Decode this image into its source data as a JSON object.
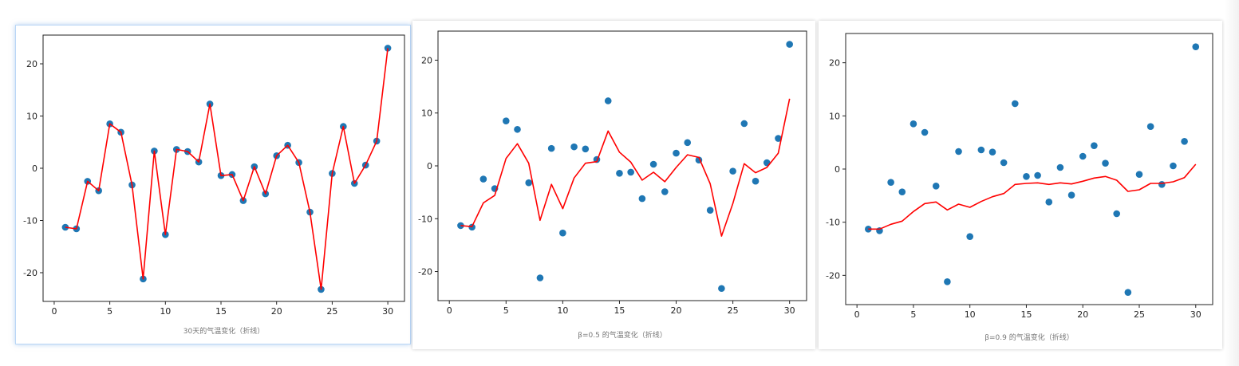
{
  "colors": {
    "points": "#1f77b4",
    "line": "#ff0000",
    "frame": "#222222",
    "caption": "#777777"
  },
  "chart_data": [
    {
      "type": "scatter",
      "caption": "30天的气温变化（折线）",
      "xlim": [
        -1,
        31.5
      ],
      "ylim": [
        -25.5,
        25.5
      ],
      "xticks": [
        0,
        5,
        10,
        15,
        20,
        25,
        30
      ],
      "yticks": [
        -20,
        -10,
        0,
        10,
        20
      ],
      "grid": false,
      "x": [
        1,
        2,
        3,
        4,
        5,
        6,
        7,
        8,
        9,
        10,
        11,
        12,
        13,
        14,
        15,
        16,
        17,
        18,
        19,
        20,
        21,
        22,
        23,
        24,
        25,
        26,
        27,
        28,
        29,
        30
      ],
      "points": [
        -11.3,
        -11.6,
        -2.5,
        -4.3,
        8.5,
        6.9,
        -3.2,
        -21.2,
        3.3,
        -12.7,
        3.6,
        3.2,
        1.2,
        12.3,
        -1.4,
        -1.2,
        -6.2,
        0.3,
        -4.9,
        2.4,
        4.4,
        1.1,
        -8.4,
        -23.2,
        -1.0,
        8.0,
        -2.9,
        0.6,
        5.2,
        23.0
      ],
      "line": [
        -11.3,
        -11.6,
        -2.5,
        -4.3,
        8.5,
        6.9,
        -3.2,
        -21.2,
        3.3,
        -12.7,
        3.6,
        3.2,
        1.2,
        12.3,
        -1.4,
        -1.2,
        -6.2,
        0.3,
        -4.9,
        2.4,
        4.4,
        1.1,
        -8.4,
        -23.2,
        -1.0,
        8.0,
        -2.9,
        0.6,
        5.2,
        23.0
      ]
    },
    {
      "type": "scatter",
      "caption": "β=0.5 的气温变化（折线）",
      "xlim": [
        -1,
        31.5
      ],
      "ylim": [
        -25.5,
        25.5
      ],
      "xticks": [
        0,
        5,
        10,
        15,
        20,
        25,
        30
      ],
      "yticks": [
        -20,
        -10,
        0,
        10,
        20
      ],
      "grid": false,
      "x": [
        1,
        2,
        3,
        4,
        5,
        6,
        7,
        8,
        9,
        10,
        11,
        12,
        13,
        14,
        15,
        16,
        17,
        18,
        19,
        20,
        21,
        22,
        23,
        24,
        25,
        26,
        27,
        28,
        29,
        30
      ],
      "points": [
        -11.3,
        -11.6,
        -2.5,
        -4.3,
        8.5,
        6.9,
        -3.2,
        -21.2,
        3.3,
        -12.7,
        3.6,
        3.2,
        1.2,
        12.3,
        -1.4,
        -1.2,
        -6.2,
        0.3,
        -4.9,
        2.4,
        4.4,
        1.1,
        -8.4,
        -23.2,
        -1.0,
        8.0,
        -2.9,
        0.6,
        5.2,
        23.0
      ],
      "line": [
        -11.3,
        -11.5,
        -7.0,
        -5.6,
        1.4,
        4.2,
        0.5,
        -10.3,
        -3.5,
        -8.1,
        -2.3,
        0.5,
        0.8,
        6.6,
        2.6,
        0.7,
        -2.7,
        -1.2,
        -3.0,
        -0.3,
        2.1,
        1.6,
        -3.4,
        -13.3,
        -7.1,
        0.4,
        -1.3,
        -0.3,
        2.4,
        12.7
      ]
    },
    {
      "type": "scatter",
      "caption": "β=0.9 的气温变化（折线）",
      "xlim": [
        -1,
        31.5
      ],
      "ylim": [
        -25.5,
        25.5
      ],
      "xticks": [
        0,
        5,
        10,
        15,
        20,
        25,
        30
      ],
      "yticks": [
        -20,
        -10,
        0,
        10,
        20
      ],
      "grid": false,
      "x": [
        1,
        2,
        3,
        4,
        5,
        6,
        7,
        8,
        9,
        10,
        11,
        12,
        13,
        14,
        15,
        16,
        17,
        18,
        19,
        20,
        21,
        22,
        23,
        24,
        25,
        26,
        27,
        28,
        29,
        30
      ],
      "points": [
        -11.3,
        -11.6,
        -2.5,
        -4.3,
        8.5,
        6.9,
        -3.2,
        -21.2,
        3.3,
        -12.7,
        3.6,
        3.2,
        1.2,
        12.3,
        -1.4,
        -1.2,
        -6.2,
        0.3,
        -4.9,
        2.4,
        4.4,
        1.1,
        -8.4,
        -23.2,
        -1.0,
        8.0,
        -2.9,
        0.6,
        5.2,
        23.0
      ],
      "line": [
        -11.3,
        -11.3,
        -10.4,
        -9.8,
        -8.0,
        -6.5,
        -6.2,
        -7.7,
        -6.6,
        -7.2,
        -6.1,
        -5.2,
        -4.6,
        -2.9,
        -2.7,
        -2.6,
        -2.9,
        -2.6,
        -2.8,
        -2.3,
        -1.7,
        -1.4,
        -2.1,
        -4.2,
        -3.9,
        -2.7,
        -2.7,
        -2.4,
        -1.6,
        0.9
      ]
    }
  ]
}
